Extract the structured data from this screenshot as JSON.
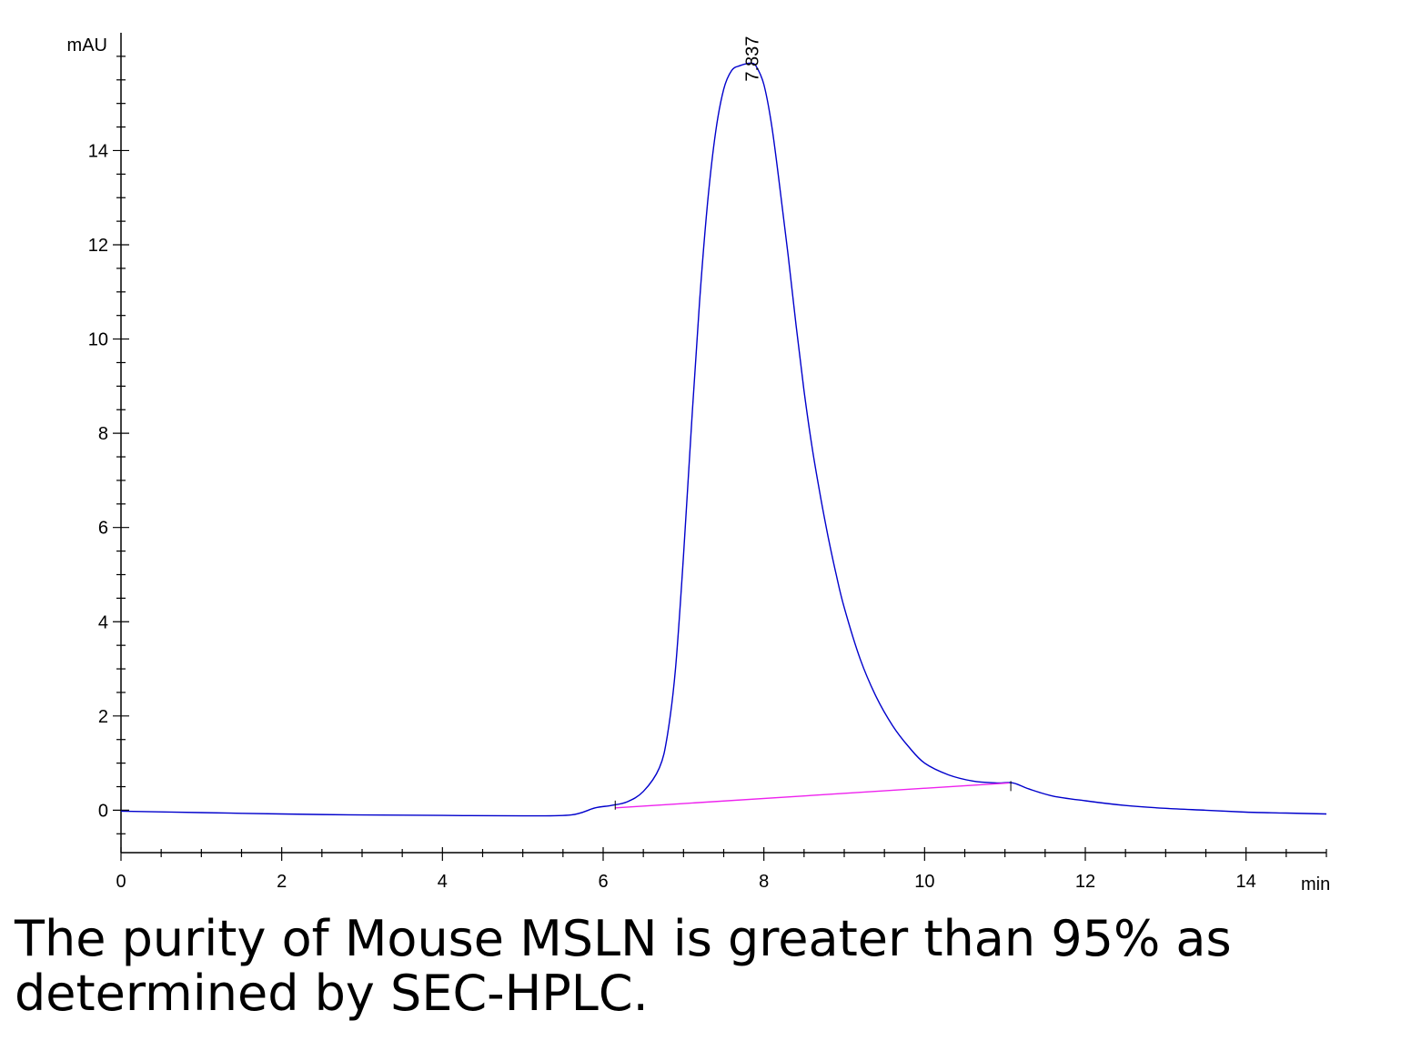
{
  "chart_data": {
    "type": "line",
    "ylabel": "mAU",
    "xlabel": "min",
    "xlim": [
      0,
      15
    ],
    "ylim": [
      -0.9,
      16.5
    ],
    "x_ticks": [
      0,
      2,
      4,
      6,
      8,
      10,
      12,
      14
    ],
    "y_ticks": [
      0,
      2,
      4,
      6,
      8,
      10,
      12,
      14
    ],
    "grid": false,
    "series": [
      {
        "color": "#0000cc",
        "x": [
          0,
          1,
          2,
          3,
          4,
          5,
          5.6,
          5.9,
          6.1,
          6.3,
          6.5,
          6.7,
          6.8,
          6.9,
          7.0,
          7.1,
          7.2,
          7.3,
          7.4,
          7.5,
          7.6,
          7.7,
          7.8,
          7.84,
          7.9,
          8.0,
          8.1,
          8.2,
          8.3,
          8.4,
          8.5,
          8.6,
          8.7,
          8.8,
          8.9,
          9.0,
          9.2,
          9.4,
          9.6,
          9.8,
          10.0,
          10.3,
          10.6,
          10.9,
          11.1,
          11.3,
          11.6,
          12.0,
          12.5,
          13.0,
          13.5,
          14.0,
          14.5,
          15.0
        ],
        "y": [
          -0.02,
          -0.05,
          -0.08,
          -0.1,
          -0.11,
          -0.12,
          -0.1,
          0.05,
          0.1,
          0.18,
          0.4,
          0.9,
          1.6,
          3.0,
          5.4,
          8.2,
          10.8,
          12.9,
          14.4,
          15.3,
          15.7,
          15.8,
          15.85,
          15.85,
          15.8,
          15.4,
          14.5,
          13.2,
          11.8,
          10.3,
          8.9,
          7.7,
          6.7,
          5.8,
          5.0,
          4.3,
          3.2,
          2.4,
          1.8,
          1.35,
          1.0,
          0.75,
          0.62,
          0.58,
          0.58,
          0.45,
          0.3,
          0.2,
          0.1,
          0.04,
          0.0,
          -0.04,
          -0.06,
          -0.08
        ]
      },
      {
        "color": "#ee22ee",
        "x": [
          6.15,
          11.05
        ],
        "y": [
          0.05,
          0.58
        ]
      }
    ],
    "annotations": [
      {
        "text": "7.837",
        "x": 7.837,
        "y": 15.85
      }
    ]
  },
  "caption": {
    "line1": "The purity of Mouse MSLN is greater than 95% as",
    "line2": "determined by SEC-HPLC."
  }
}
